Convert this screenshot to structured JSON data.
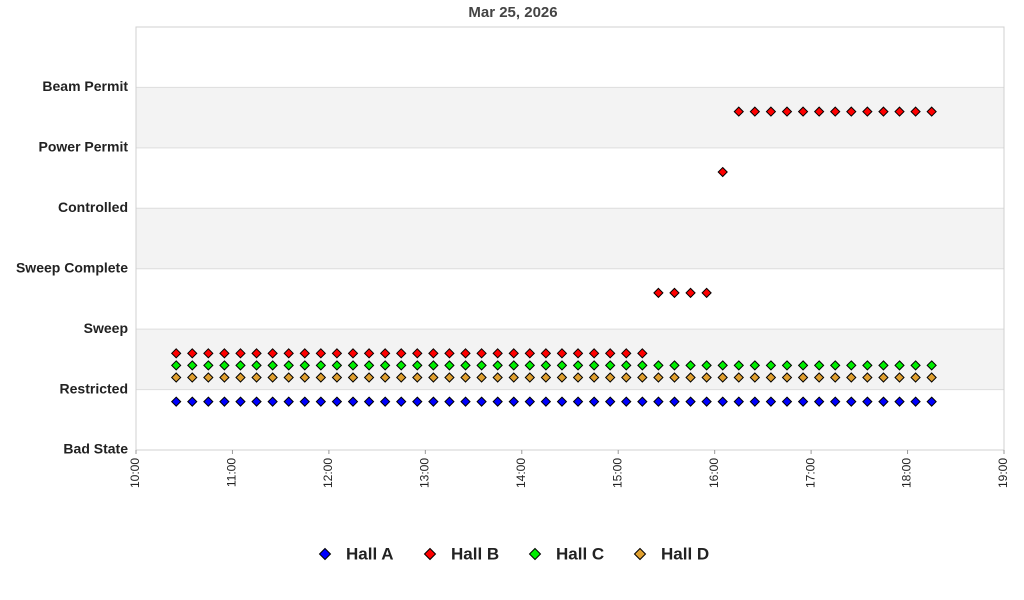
{
  "chart_data": {
    "type": "scatter",
    "title": "Mar 25, 2026",
    "x": [
      "10:25",
      "10:35",
      "10:45",
      "10:55",
      "11:05",
      "11:15",
      "11:25",
      "11:35",
      "11:45",
      "11:55",
      "12:05",
      "12:15",
      "12:25",
      "12:35",
      "12:45",
      "12:55",
      "13:05",
      "13:15",
      "13:25",
      "13:35",
      "13:45",
      "13:55",
      "14:05",
      "14:15",
      "14:25",
      "14:35",
      "14:45",
      "14:55",
      "15:05",
      "15:15",
      "15:25",
      "15:35",
      "15:45",
      "15:55",
      "16:05",
      "16:15",
      "16:25",
      "16:35",
      "16:45",
      "16:55",
      "17:05",
      "17:15",
      "17:25",
      "17:35",
      "17:45",
      "17:55",
      "18:05",
      "18:15"
    ],
    "series": [
      {
        "name": "Hall A",
        "color": "#0000ff",
        "values": [
          0.8,
          0.8,
          0.8,
          0.8,
          0.8,
          0.8,
          0.8,
          0.8,
          0.8,
          0.8,
          0.8,
          0.8,
          0.8,
          0.8,
          0.8,
          0.8,
          0.8,
          0.8,
          0.8,
          0.8,
          0.8,
          0.8,
          0.8,
          0.8,
          0.8,
          0.8,
          0.8,
          0.8,
          0.8,
          0.8,
          0.8,
          0.8,
          0.8,
          0.8,
          0.8,
          0.8,
          0.8,
          0.8,
          0.8,
          0.8,
          0.8,
          0.8,
          0.8,
          0.8,
          0.8,
          0.8,
          0.8,
          0.8
        ]
      },
      {
        "name": "Hall B",
        "color": "#ff0000",
        "values": [
          1.6,
          1.6,
          1.6,
          1.6,
          1.6,
          1.6,
          1.6,
          1.6,
          1.6,
          1.6,
          1.6,
          1.6,
          1.6,
          1.6,
          1.6,
          1.6,
          1.6,
          1.6,
          1.6,
          1.6,
          1.6,
          1.6,
          1.6,
          1.6,
          1.6,
          1.6,
          1.6,
          1.6,
          1.6,
          1.6,
          2.6,
          2.6,
          2.6,
          2.6,
          4.6,
          5.6,
          5.6,
          5.6,
          5.6,
          5.6,
          5.6,
          5.6,
          5.6,
          5.6,
          5.6,
          5.6,
          5.6,
          5.6
        ]
      },
      {
        "name": "Hall C",
        "color": "#00ee00",
        "values": [
          1.4,
          1.4,
          1.4,
          1.4,
          1.4,
          1.4,
          1.4,
          1.4,
          1.4,
          1.4,
          1.4,
          1.4,
          1.4,
          1.4,
          1.4,
          1.4,
          1.4,
          1.4,
          1.4,
          1.4,
          1.4,
          1.4,
          1.4,
          1.4,
          1.4,
          1.4,
          1.4,
          1.4,
          1.4,
          1.4,
          1.4,
          1.4,
          1.4,
          1.4,
          1.4,
          1.4,
          1.4,
          1.4,
          1.4,
          1.4,
          1.4,
          1.4,
          1.4,
          1.4,
          1.4,
          1.4,
          1.4,
          1.4
        ]
      },
      {
        "name": "Hall D",
        "color": "#e0a030",
        "values": [
          1.2,
          1.2,
          1.2,
          1.2,
          1.2,
          1.2,
          1.2,
          1.2,
          1.2,
          1.2,
          1.2,
          1.2,
          1.2,
          1.2,
          1.2,
          1.2,
          1.2,
          1.2,
          1.2,
          1.2,
          1.2,
          1.2,
          1.2,
          1.2,
          1.2,
          1.2,
          1.2,
          1.2,
          1.2,
          1.2,
          1.2,
          1.2,
          1.2,
          1.2,
          1.2,
          1.2,
          1.2,
          1.2,
          1.2,
          1.2,
          1.2,
          1.2,
          1.2,
          1.2,
          1.2,
          1.2,
          1.2,
          1.2
        ]
      }
    ],
    "xlim": [
      "10:00",
      "19:00"
    ],
    "xticks": [
      "10:00",
      "11:00",
      "12:00",
      "13:00",
      "14:00",
      "15:00",
      "16:00",
      "17:00",
      "18:00",
      "19:00"
    ],
    "ylim": [
      0,
      7
    ],
    "yticks": [
      {
        "value": 0,
        "label": "Bad State"
      },
      {
        "value": 1,
        "label": "Restricted"
      },
      {
        "value": 2,
        "label": "Sweep"
      },
      {
        "value": 3,
        "label": "Sweep Complete"
      },
      {
        "value": 4,
        "label": "Controlled"
      },
      {
        "value": 5,
        "label": "Power Permit"
      },
      {
        "value": 6,
        "label": "Beam Permit"
      }
    ],
    "grid": true,
    "legend": "bottom"
  }
}
